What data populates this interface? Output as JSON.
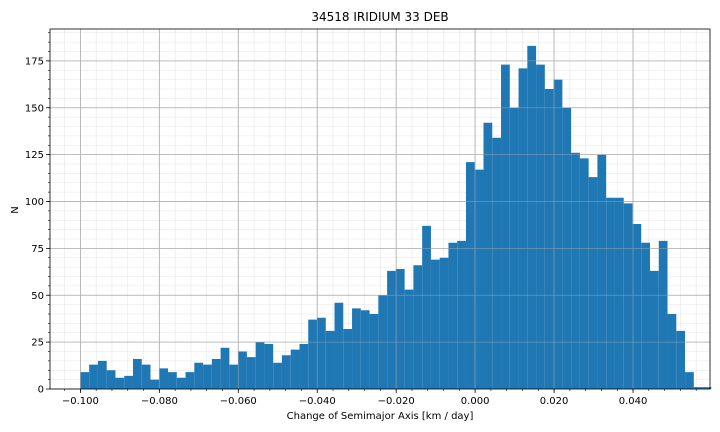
{
  "chart_data": {
    "type": "bar",
    "title": "34518 IRIDIUM 33 DEB",
    "xlabel": "Change of Semimajor Axis [km / day]",
    "ylabel": "N",
    "xlim": [
      -0.1077,
      0.0595
    ],
    "ylim": [
      0,
      192
    ],
    "grid": true,
    "minor_grid": true,
    "bar_color": "#1f77b4",
    "bin_width": 0.00222,
    "bin_start": -0.1,
    "values": [
      9,
      13,
      15,
      10,
      6,
      7,
      16,
      13,
      5,
      11,
      9,
      6,
      9,
      14,
      13,
      16,
      22,
      13,
      20,
      17,
      25,
      24,
      14,
      18,
      21,
      24,
      37,
      38,
      31,
      46,
      32,
      43,
      42,
      40,
      50,
      63,
      64,
      53,
      66,
      87,
      69,
      70,
      78,
      79,
      121,
      117,
      142,
      134,
      173,
      150,
      171,
      183,
      173,
      160,
      165,
      150,
      126,
      123,
      113,
      125,
      102,
      102,
      99,
      88,
      78,
      63,
      79,
      40,
      31,
      9,
      1,
      1
    ],
    "x_ticks": [
      -0.1,
      -0.08,
      -0.06,
      -0.04,
      -0.02,
      0.0,
      0.02,
      0.04
    ],
    "x_tick_labels": [
      "−0.100",
      "−0.080",
      "−0.060",
      "−0.040",
      "−0.020",
      "0.000",
      "0.020",
      "0.040"
    ],
    "y_ticks": [
      0,
      25,
      50,
      75,
      100,
      125,
      150,
      175
    ],
    "y_tick_labels": [
      "0",
      "25",
      "50",
      "75",
      "100",
      "125",
      "150",
      "175"
    ]
  }
}
